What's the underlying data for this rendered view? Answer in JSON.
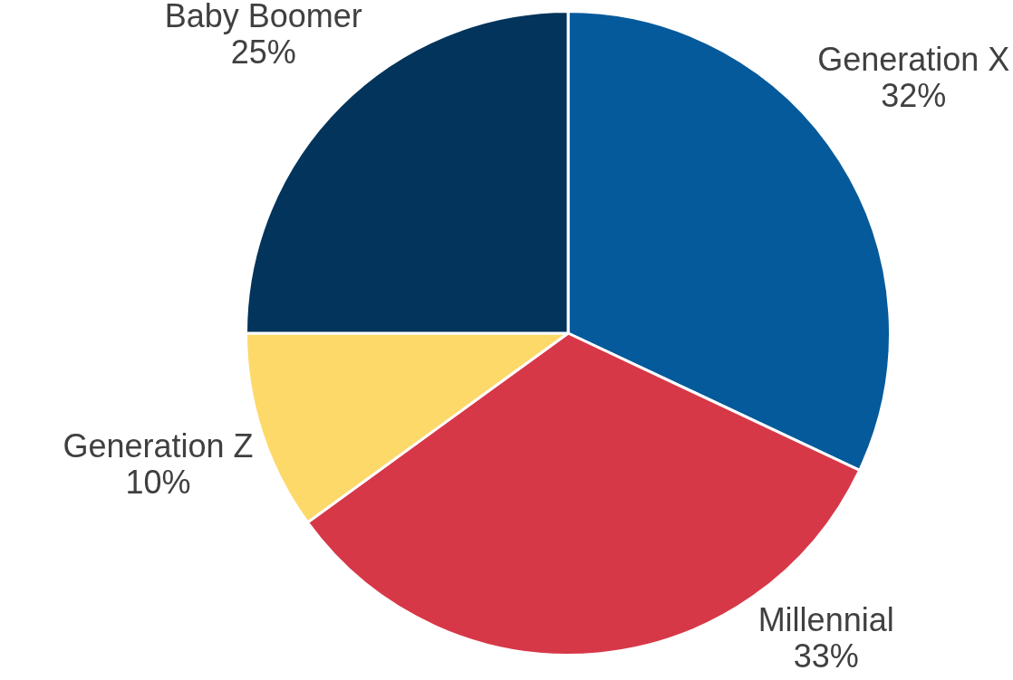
{
  "chart_data": {
    "type": "pie",
    "categories": [
      "Generation X",
      "Millennial",
      "Generation Z",
      "Baby Boomer"
    ],
    "values": [
      32,
      33,
      10,
      25
    ],
    "colors": [
      "#045a9b",
      "#d73848",
      "#fdd96a",
      "#02345c"
    ],
    "value_labels": [
      "32%",
      "33%",
      "10%",
      "25%"
    ],
    "legend": false
  }
}
